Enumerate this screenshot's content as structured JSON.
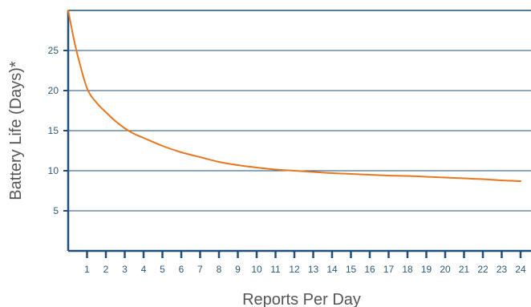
{
  "chart_data": {
    "type": "line",
    "title": "",
    "xlabel": "Reports Per Day",
    "ylabel": "Battery Life (Days)*",
    "xlim": [
      0,
      24
    ],
    "ylim": [
      0,
      30
    ],
    "x_ticks": [
      1,
      2,
      3,
      4,
      5,
      6,
      7,
      8,
      9,
      10,
      11,
      12,
      13,
      14,
      15,
      16,
      17,
      18,
      19,
      20,
      21,
      22,
      23,
      24
    ],
    "x_tick_labels": [
      "1",
      "2",
      "3",
      "4",
      "5",
      "6",
      "7",
      "8",
      "9",
      "10",
      "11",
      "12",
      "13",
      "14",
      "15",
      "16",
      "17",
      "18",
      "19",
      "20",
      "21",
      "22",
      "23",
      "24"
    ],
    "y_ticks": [
      5,
      10,
      15,
      20,
      25
    ],
    "y_tick_labels": [
      "5",
      "10",
      "15",
      "20",
      "25"
    ],
    "grid": "horizontal",
    "series": [
      {
        "color": "#e8761f",
        "x": [
          0,
          0.25,
          0.5,
          1,
          1.5,
          2,
          2.5,
          3,
          3.5,
          4,
          5,
          6,
          7,
          8,
          9,
          10,
          11,
          12,
          13,
          14,
          15,
          16,
          17,
          18,
          19,
          20,
          21,
          22,
          23,
          24
        ],
        "y": [
          30,
          27,
          24.4,
          20.3,
          18.5,
          17.3,
          16.2,
          15.3,
          14.6,
          14.1,
          13.1,
          12.3,
          11.7,
          11.1,
          10.7,
          10.4,
          10.15,
          10.0,
          9.85,
          9.7,
          9.6,
          9.5,
          9.4,
          9.35,
          9.25,
          9.15,
          9.05,
          8.95,
          8.8,
          8.7
        ]
      }
    ]
  },
  "colors": {
    "axis": "#1e4e79",
    "gridline": "#1e4e79",
    "tick_label": "#2d5a78",
    "axis_title": "#555555",
    "line": "#e8761f"
  }
}
